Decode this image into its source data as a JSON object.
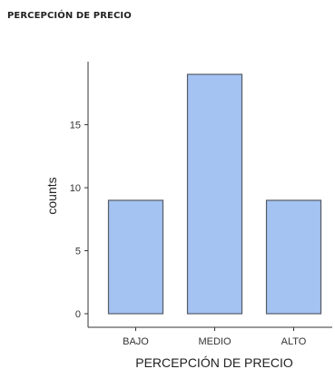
{
  "page": {
    "title": "PERCEPCIÓN DE PRECIO"
  },
  "chart_data": {
    "type": "bar",
    "categories": [
      "BAJO",
      "MEDIO",
      "ALTO"
    ],
    "values": [
      9,
      19,
      9
    ],
    "xlabel": "PERCEPCIÓN DE PRECIO",
    "ylabel": "counts",
    "ylim": [
      0,
      19
    ],
    "yticks": [
      0,
      5,
      10,
      15
    ],
    "grid": false,
    "legend": "none",
    "colors": {
      "bar_fill": "#a4c3f2",
      "bar_stroke": "#555b66",
      "axis": "#333333"
    }
  }
}
